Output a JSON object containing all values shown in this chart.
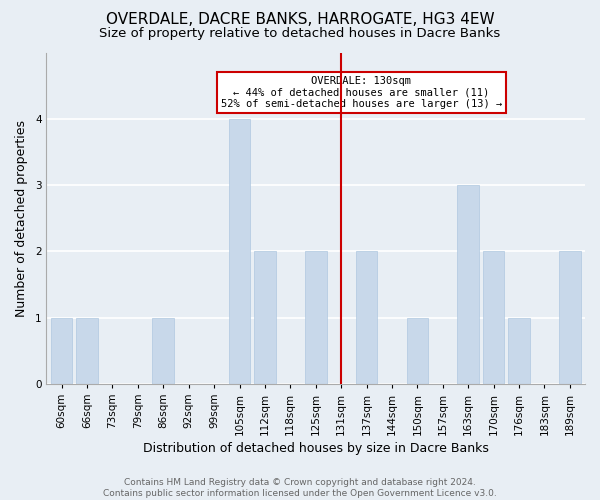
{
  "title": "OVERDALE, DACRE BANKS, HARROGATE, HG3 4EW",
  "subtitle": "Size of property relative to detached houses in Dacre Banks",
  "xlabel": "Distribution of detached houses by size in Dacre Banks",
  "ylabel": "Number of detached properties",
  "footer_line1": "Contains HM Land Registry data © Crown copyright and database right 2024.",
  "footer_line2": "Contains public sector information licensed under the Open Government Licence v3.0.",
  "bins": [
    "60sqm",
    "66sqm",
    "73sqm",
    "79sqm",
    "86sqm",
    "92sqm",
    "99sqm",
    "105sqm",
    "112sqm",
    "118sqm",
    "125sqm",
    "131sqm",
    "137sqm",
    "144sqm",
    "150sqm",
    "157sqm",
    "163sqm",
    "170sqm",
    "176sqm",
    "183sqm",
    "189sqm"
  ],
  "values": [
    1,
    1,
    0,
    0,
    1,
    0,
    0,
    4,
    2,
    0,
    2,
    0,
    2,
    0,
    1,
    0,
    3,
    2,
    1,
    0,
    2
  ],
  "bar_color": "#c8d8ea",
  "bar_edge_color": "#b0c8e0",
  "highlight_line_x_label": "131sqm",
  "highlight_line_color": "#cc0000",
  "annotation_title": "OVERDALE: 130sqm",
  "annotation_line1": "← 44% of detached houses are smaller (11)",
  "annotation_line2": "52% of semi-detached houses are larger (13) →",
  "annotation_box_color": "#ffffff",
  "annotation_box_edge_color": "#cc0000",
  "ylim": [
    0,
    5
  ],
  "yticks": [
    0,
    1,
    2,
    3,
    4,
    5
  ],
  "background_color": "#e8eef4",
  "plot_background_color": "#e8eef4",
  "title_fontsize": 11,
  "subtitle_fontsize": 9.5,
  "axis_label_fontsize": 9,
  "tick_fontsize": 7.5,
  "footer_fontsize": 6.5
}
